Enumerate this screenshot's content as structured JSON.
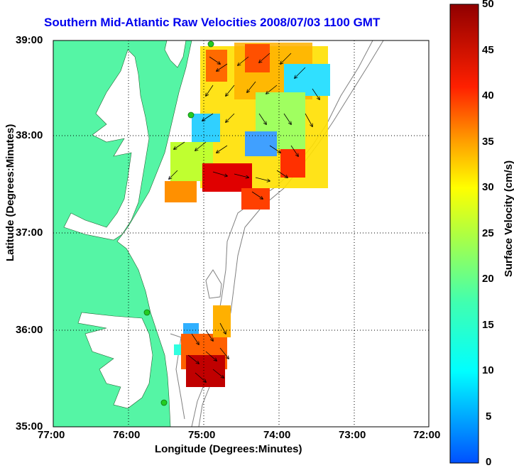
{
  "title": "Southern Mid-Atlantic Raw Velocities 2008/07/03 1100 GMT",
  "xlabel": "Longitude (Degrees:Minutes)",
  "ylabel": "Latitude (Degrees:Minutes)",
  "colorbar_label": "Surface Velocity (cm/s)",
  "x_ticks": [
    "77:00",
    "76:00",
    "75:00",
    "74:00",
    "73:00",
    "72:00"
  ],
  "y_ticks": [
    "39:00",
    "38:00",
    "37:00",
    "36:00",
    "35:00"
  ],
  "colorbar_ticks": [
    "50",
    "45",
    "40",
    "35",
    "30",
    "25",
    "20",
    "15",
    "10",
    "5",
    "0"
  ],
  "colors": {
    "land": "#55f5a5",
    "title": "#0000ee",
    "vector": "#000000",
    "station": "#22cc22"
  },
  "map": {
    "lon_range": [
      -77,
      -72
    ],
    "lat_range": [
      35,
      39
    ],
    "colorbar_range": [
      0,
      50
    ],
    "grid": true
  },
  "stations": [
    "station-1",
    "station-2",
    "station-3",
    "station-4"
  ]
}
